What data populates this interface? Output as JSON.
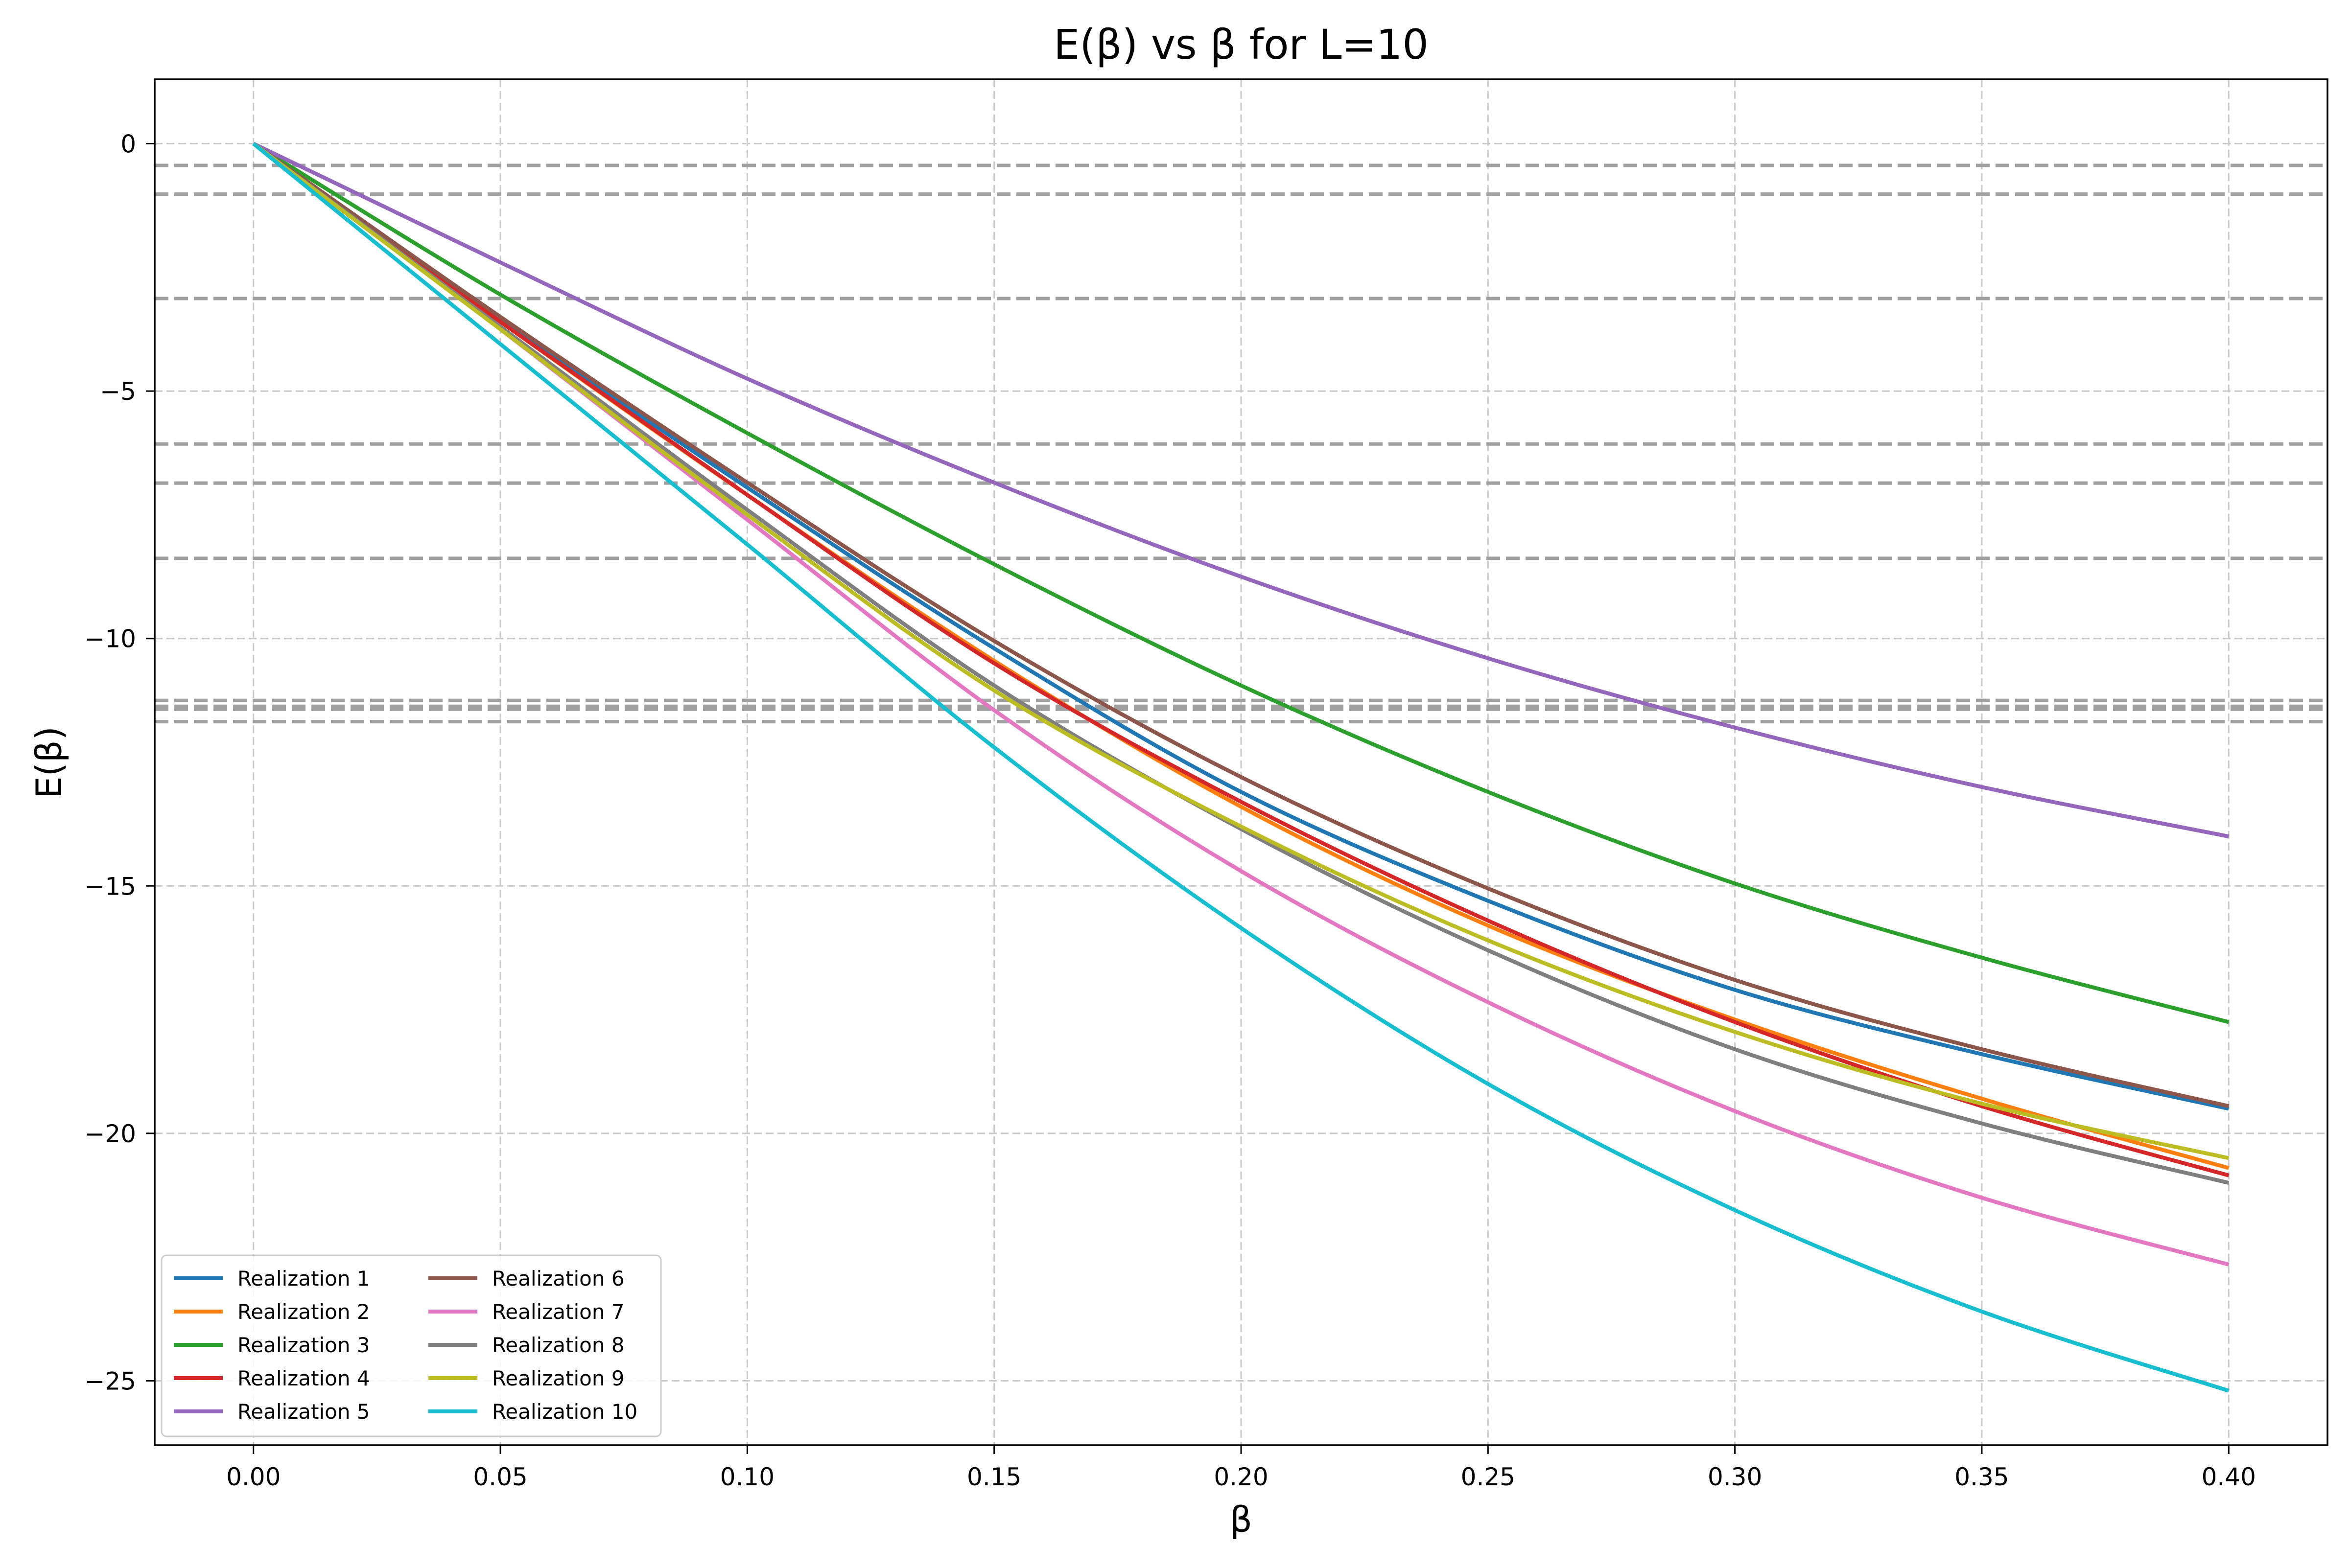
{
  "chart_data": {
    "type": "line",
    "title": "E(β) vs β for L=10",
    "xlabel": "β",
    "ylabel": "E(β)",
    "xlim": [
      -0.02,
      0.42
    ],
    "ylim": [
      -26.3,
      1.3
    ],
    "xticks": [
      0.0,
      0.05,
      0.1,
      0.15,
      0.2,
      0.25,
      0.3,
      0.35,
      0.4
    ],
    "xtick_labels": [
      "0.00",
      "0.05",
      "0.10",
      "0.15",
      "0.20",
      "0.25",
      "0.30",
      "0.35",
      "0.40"
    ],
    "yticks": [
      0,
      -5,
      -10,
      -15,
      -20,
      -25
    ],
    "ytick_labels": [
      "0",
      "−5",
      "−10",
      "−15",
      "−20",
      "−25"
    ],
    "grid": true,
    "legend_position": "lower-left",
    "legend_columns": 2,
    "reference_lines": {
      "orientation": "horizontal",
      "style": "dashed",
      "color": "#a0a0a0",
      "y": [
        -0.44,
        -1.02,
        -3.13,
        -6.07,
        -6.86,
        -8.38,
        -11.25,
        -11.37,
        -11.43,
        -11.68
      ]
    },
    "x": [
      0.0,
      0.05,
      0.1,
      0.15,
      0.2,
      0.25,
      0.3,
      0.35,
      0.4
    ],
    "series": [
      {
        "name": "Realization 1",
        "color": "#1f77b4",
        "values": [
          0,
          -3.55,
          -6.95,
          -10.2,
          -13.1,
          -15.3,
          -17.1,
          -18.4,
          -19.5
        ]
      },
      {
        "name": "Realization 2",
        "color": "#ff7f0e",
        "values": [
          0,
          -3.6,
          -7.1,
          -10.45,
          -13.4,
          -15.8,
          -17.7,
          -19.3,
          -20.7
        ]
      },
      {
        "name": "Realization 3",
        "color": "#2ca02c",
        "values": [
          0,
          -3.05,
          -5.85,
          -8.5,
          -10.95,
          -13.1,
          -14.95,
          -16.45,
          -17.75
        ]
      },
      {
        "name": "Realization 4",
        "color": "#d62728",
        "values": [
          0,
          -3.6,
          -7.1,
          -10.5,
          -13.3,
          -15.7,
          -17.75,
          -19.45,
          -20.85
        ]
      },
      {
        "name": "Realization 5",
        "color": "#9467bd",
        "values": [
          0,
          -2.4,
          -4.75,
          -6.85,
          -8.75,
          -10.4,
          -11.8,
          -13.0,
          -14.0
        ]
      },
      {
        "name": "Realization 6",
        "color": "#8c564b",
        "values": [
          0,
          -3.5,
          -6.85,
          -10.05,
          -12.8,
          -15.05,
          -16.9,
          -18.3,
          -19.45
        ]
      },
      {
        "name": "Realization 7",
        "color": "#e377c2",
        "values": [
          0,
          -3.75,
          -7.6,
          -11.45,
          -14.7,
          -17.35,
          -19.55,
          -21.3,
          -22.65
        ]
      },
      {
        "name": "Realization 8",
        "color": "#7f7f7f",
        "values": [
          0,
          -3.7,
          -7.4,
          -10.95,
          -13.85,
          -16.3,
          -18.3,
          -19.8,
          -21.0
        ]
      },
      {
        "name": "Realization 9",
        "color": "#bcbd22",
        "values": [
          0,
          -3.75,
          -7.5,
          -11.05,
          -13.8,
          -16.1,
          -17.95,
          -19.4,
          -20.5
        ]
      },
      {
        "name": "Realization 10",
        "color": "#17becf",
        "values": [
          0,
          -4.05,
          -8.1,
          -12.2,
          -15.85,
          -19.0,
          -21.55,
          -23.6,
          -25.2
        ]
      }
    ]
  }
}
